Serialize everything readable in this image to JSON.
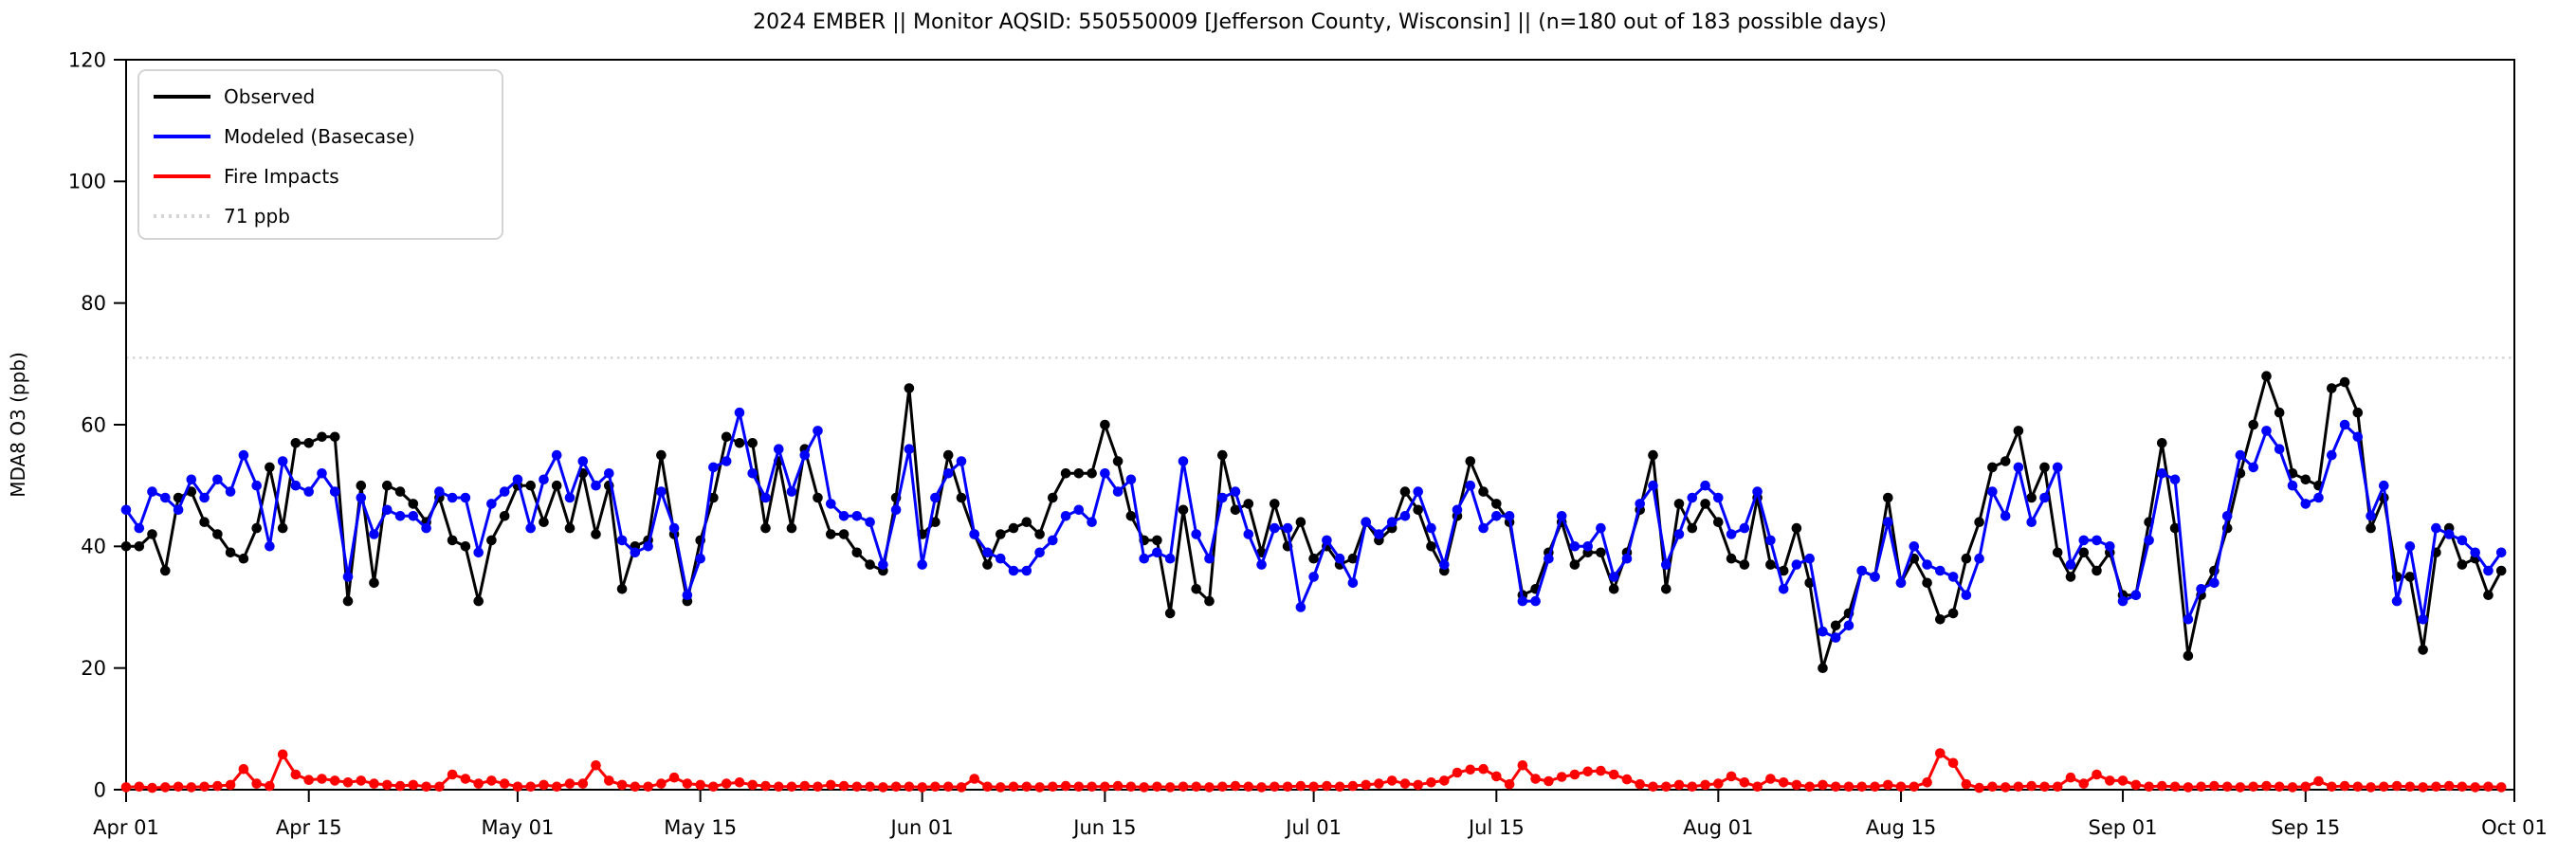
{
  "title": "2024 EMBER || Monitor AQSID: 550550009 [Jefferson County, Wisconsin] || (n=180 out of 183 possible days)",
  "axes": {
    "y_label": "MDA8 O3 (ppb)",
    "y_ticks": [
      0,
      20,
      40,
      60,
      80,
      100,
      120
    ],
    "y_max": 120,
    "x_ticks": [
      {
        "label": "Apr 01",
        "day": 0
      },
      {
        "label": "Apr 15",
        "day": 14
      },
      {
        "label": "May 01",
        "day": 30
      },
      {
        "label": "May 15",
        "day": 44
      },
      {
        "label": "Jun 01",
        "day": 61
      },
      {
        "label": "Jun 15",
        "day": 75
      },
      {
        "label": "Jul 01",
        "day": 91
      },
      {
        "label": "Jul 15",
        "day": 105
      },
      {
        "label": "Aug 01",
        "day": 122
      },
      {
        "label": "Aug 15",
        "day": 136
      },
      {
        "label": "Sep 01",
        "day": 153
      },
      {
        "label": "Sep 15",
        "day": 167
      },
      {
        "label": "Oct 01",
        "day": 183
      }
    ]
  },
  "legend": [
    {
      "label": "Observed",
      "color": "#000000",
      "dash": "solid"
    },
    {
      "label": "Modeled (Basecase)",
      "color": "#0000ff",
      "dash": "solid"
    },
    {
      "label": "Fire Impacts",
      "color": "#ff0000",
      "dash": "solid"
    },
    {
      "label": "71 ppb",
      "color": "#d3d3d3",
      "dash": "dotted"
    }
  ],
  "chart_data": {
    "type": "line",
    "title": "2024 EMBER || Monitor AQSID: 550550009 [Jefferson County, Wisconsin] || (n=180 out of 183 possible days)",
    "xlabel": "",
    "ylabel": "MDA8 O3 (ppb)",
    "ylim": [
      0,
      120
    ],
    "grid": false,
    "legend_position": "upper left",
    "x_unit": "day",
    "x_range": [
      "Apr 01",
      "Oct 01"
    ],
    "n_days": 183,
    "threshold": {
      "value": 71,
      "label": "71 ppb",
      "color": "#d3d3d3",
      "style": "dotted"
    },
    "x_tick_labels": [
      "Apr 01",
      "Apr 15",
      "May 01",
      "May 15",
      "Jun 01",
      "Jun 15",
      "Jul 01",
      "Jul 15",
      "Aug 01",
      "Aug 15",
      "Sep 01",
      "Sep 15",
      "Oct 01"
    ],
    "series": [
      {
        "name": "Observed",
        "color": "#000000",
        "marker": "o",
        "values": [
          40,
          40,
          42,
          36,
          48,
          49,
          44,
          42,
          39,
          38,
          43,
          53,
          43,
          57,
          57,
          58,
          58,
          31,
          50,
          34,
          50,
          49,
          47,
          44,
          48,
          41,
          40,
          31,
          41,
          45,
          50,
          50,
          44,
          50,
          43,
          52,
          42,
          50,
          33,
          40,
          41,
          55,
          42,
          31,
          41,
          48,
          58,
          57,
          57,
          43,
          54,
          43,
          56,
          48,
          42,
          42,
          39,
          37,
          36,
          48,
          66,
          42,
          44,
          55,
          48,
          42,
          37,
          42,
          43,
          44,
          42,
          48,
          52,
          52,
          52,
          60,
          54,
          45,
          41,
          41,
          29,
          46,
          33,
          31,
          55,
          46,
          47,
          39,
          47,
          40,
          44,
          38,
          40,
          37,
          38,
          44,
          41,
          43,
          49,
          46,
          40,
          36,
          45,
          54,
          49,
          47,
          44,
          32,
          33,
          39,
          44,
          37,
          39,
          39,
          33,
          39,
          46,
          55,
          33,
          47,
          43,
          47,
          44,
          38,
          37,
          48,
          37,
          36,
          43,
          34,
          20,
          27,
          29,
          36,
          35,
          48,
          34,
          38,
          34,
          28,
          29,
          38,
          44,
          53,
          54,
          59,
          48,
          53,
          39,
          35,
          39,
          36,
          39,
          32,
          32,
          44,
          57,
          43,
          22,
          32,
          36,
          43,
          52,
          60,
          68,
          62,
          52,
          51,
          50,
          66,
          67,
          62,
          43,
          48,
          35,
          35,
          23,
          39,
          43,
          37,
          38,
          32,
          36
        ]
      },
      {
        "name": "Modeled (Basecase)",
        "color": "#0000ff",
        "marker": "o",
        "values": [
          46,
          43,
          49,
          48,
          46,
          51,
          48,
          51,
          49,
          55,
          50,
          40,
          54,
          50,
          49,
          52,
          49,
          35,
          48,
          42,
          46,
          45,
          45,
          43,
          49,
          48,
          48,
          39,
          47,
          49,
          51,
          43,
          51,
          55,
          48,
          54,
          50,
          52,
          41,
          39,
          40,
          49,
          43,
          32,
          38,
          53,
          54,
          62,
          52,
          48,
          56,
          49,
          55,
          59,
          47,
          45,
          45,
          44,
          37,
          46,
          56,
          37,
          48,
          52,
          54,
          42,
          39,
          38,
          36,
          36,
          39,
          41,
          45,
          46,
          44,
          52,
          49,
          51,
          38,
          39,
          38,
          54,
          42,
          38,
          48,
          49,
          42,
          37,
          43,
          43,
          30,
          35,
          41,
          38,
          34,
          44,
          42,
          44,
          45,
          49,
          43,
          37,
          46,
          50,
          43,
          45,
          45,
          31,
          31,
          38,
          45,
          40,
          40,
          43,
          35,
          38,
          47,
          50,
          37,
          42,
          48,
          50,
          48,
          42,
          43,
          49,
          41,
          33,
          37,
          38,
          26,
          25,
          27,
          36,
          35,
          44,
          34,
          40,
          37,
          36,
          35,
          32,
          38,
          49,
          45,
          53,
          44,
          48,
          53,
          37,
          41,
          41,
          40,
          31,
          32,
          41,
          52,
          51,
          28,
          33,
          34,
          45,
          55,
          53,
          59,
          56,
          50,
          47,
          48,
          55,
          60,
          58,
          45,
          50,
          31,
          40,
          28,
          43,
          42,
          41,
          39,
          36,
          39
        ]
      },
      {
        "name": "Fire Impacts",
        "color": "#ff0000",
        "marker": "o",
        "values": [
          0.4,
          0.5,
          0.3,
          0.4,
          0.5,
          0.4,
          0.5,
          0.6,
          0.8,
          3.4,
          1.0,
          0.6,
          5.8,
          2.5,
          1.6,
          1.8,
          1.5,
          1.2,
          1.5,
          1.0,
          0.8,
          0.6,
          0.8,
          0.5,
          0.5,
          2.5,
          1.8,
          1.0,
          1.5,
          1.0,
          0.5,
          0.5,
          0.8,
          0.5,
          1.0,
          1.0,
          4.0,
          1.5,
          0.8,
          0.5,
          0.5,
          1.0,
          2.0,
          1.0,
          0.8,
          0.5,
          1.0,
          1.2,
          0.8,
          0.6,
          0.5,
          0.5,
          0.6,
          0.5,
          0.8,
          0.6,
          0.5,
          0.5,
          0.4,
          0.5,
          0.5,
          0.4,
          0.5,
          0.5,
          0.4,
          1.8,
          0.5,
          0.4,
          0.5,
          0.5,
          0.4,
          0.5,
          0.6,
          0.5,
          0.5,
          0.5,
          0.6,
          0.5,
          0.4,
          0.5,
          0.4,
          0.5,
          0.5,
          0.4,
          0.5,
          0.6,
          0.5,
          0.4,
          0.5,
          0.5,
          0.6,
          0.5,
          0.6,
          0.5,
          0.6,
          0.8,
          1.0,
          1.5,
          1.0,
          0.8,
          1.2,
          1.5,
          2.8,
          3.3,
          3.4,
          2.2,
          0.9,
          4.0,
          1.8,
          1.4,
          2.1,
          2.5,
          3.0,
          3.1,
          2.5,
          1.7,
          0.9,
          0.5,
          0.5,
          0.8,
          0.5,
          0.8,
          1.0,
          2.2,
          1.2,
          0.5,
          1.8,
          1.2,
          0.8,
          0.5,
          0.8,
          0.5,
          0.5,
          0.5,
          0.5,
          0.8,
          0.5,
          0.5,
          1.2,
          6.0,
          4.4,
          0.9,
          0.3,
          0.5,
          0.4,
          0.5,
          0.6,
          0.5,
          0.5,
          2.0,
          1.0,
          2.5,
          1.5,
          1.5,
          0.8,
          0.5,
          0.6,
          0.5,
          0.4,
          0.5,
          0.6,
          0.5,
          0.4,
          0.5,
          0.6,
          0.5,
          0.4,
          0.5,
          1.4,
          0.5,
          0.6,
          0.5,
          0.4,
          0.5,
          0.6,
          0.5,
          0.4,
          0.5,
          0.6,
          0.5,
          0.4,
          0.5,
          0.4
        ]
      }
    ]
  }
}
